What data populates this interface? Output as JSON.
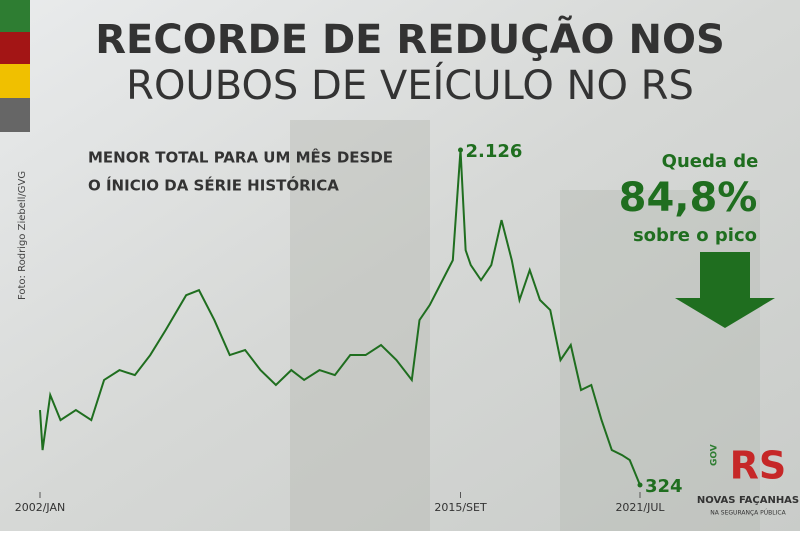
{
  "chart_data": {
    "type": "line",
    "title": [
      "RECORDE DE REDUÇÃO NOS",
      "ROUBOS DE VEÍCULO NO RS"
    ],
    "subtitle": [
      "MENOR TOTAL PARA UM MÊS DESDE",
      "O ÍNICIO DA SÉRIE HISTÓRICA"
    ],
    "annotations": [
      "Queda de",
      "84,8%",
      "sobre o pico"
    ],
    "credit": "Foto: Rodrigo Ziebell/GVG",
    "logo": [
      "GOV",
      "RS",
      "NOVAS FAÇANHAS",
      "NA SEGURANÇA PÚBLICA"
    ],
    "xticks": [
      {
        "value": 0,
        "label": "2002/JAN"
      },
      {
        "value": 164,
        "label": "2015/SET"
      },
      {
        "value": 234,
        "label": "2021/JUL"
      }
    ],
    "xlim": [
      0,
      234
    ],
    "series": [
      {
        "color": "#1f6e1f",
        "x": [
          0,
          1,
          4,
          8,
          14,
          20,
          25,
          31,
          37,
          43,
          49,
          57,
          62,
          68,
          74,
          80,
          86,
          92,
          98,
          103,
          109,
          115,
          121,
          127,
          133,
          139,
          145,
          148,
          152,
          158,
          161,
          164,
          166,
          168,
          172,
          176,
          180,
          184,
          187,
          191,
          195,
          199,
          203,
          207,
          211,
          215,
          219,
          223,
          227,
          230,
          234
        ],
        "values": [
          727,
          512,
          808,
          673,
          727,
          673,
          889,
          942,
          915,
          1023,
          1157,
          1345,
          1372,
          1211,
          1023,
          1050,
          942,
          862,
          942,
          889,
          942,
          915,
          1023,
          1023,
          1077,
          996,
          889,
          1211,
          1292,
          1453,
          1533,
          2126,
          1587,
          1507,
          1426,
          1507,
          1749,
          1533,
          1319,
          1480,
          1319,
          1265,
          996,
          1077,
          835,
          862,
          673,
          512,
          485,
          458,
          324
        ],
        "value_labels": [
          null,
          null,
          null,
          null,
          null,
          null,
          null,
          null,
          null,
          null,
          null,
          null,
          null,
          null,
          null,
          null,
          null,
          null,
          null,
          null,
          null,
          null,
          null,
          null,
          null,
          null,
          null,
          null,
          null,
          null,
          null,
          "2.126",
          null,
          null,
          null,
          null,
          null,
          null,
          null,
          null,
          null,
          null,
          null,
          null,
          null,
          null,
          null,
          null,
          null,
          null,
          "324"
        ]
      }
    ]
  }
}
